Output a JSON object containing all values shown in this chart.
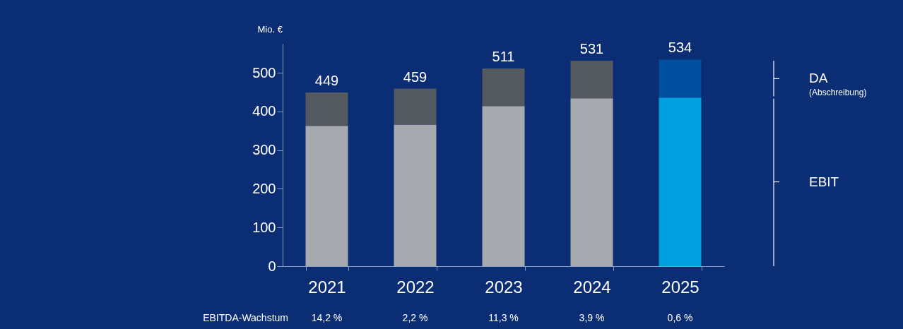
{
  "chart_data": {
    "type": "bar",
    "stacked": true,
    "ylabel": "Mio. €",
    "categories": [
      "2021",
      "2022",
      "2023",
      "2024",
      "2025"
    ],
    "series": [
      {
        "name": "EBIT",
        "colors": [
          "#a7aaae",
          "#a7aaae",
          "#a7aaae",
          "#a7aaae",
          "#00a0e0"
        ],
        "values": [
          363,
          366,
          414,
          434,
          436
        ]
      },
      {
        "name": "DA",
        "colors": [
          "#53595e",
          "#53595e",
          "#53595e",
          "#53595e",
          "#004f9f"
        ],
        "values": [
          86,
          93,
          97,
          97,
          98
        ]
      }
    ],
    "totals": [
      "449",
      "459",
      "511",
      "531",
      "534"
    ],
    "ylim": [
      0,
      575
    ],
    "yticks": [
      0,
      100,
      200,
      300,
      400,
      500
    ],
    "grid": false,
    "legend": "right",
    "annotations": [
      "(Abschreibung)",
      "EBITDA-Wachstum",
      "14,2 %",
      "2,2 %",
      "11,3 %",
      "3,9 %",
      "0,6 %"
    ]
  }
}
